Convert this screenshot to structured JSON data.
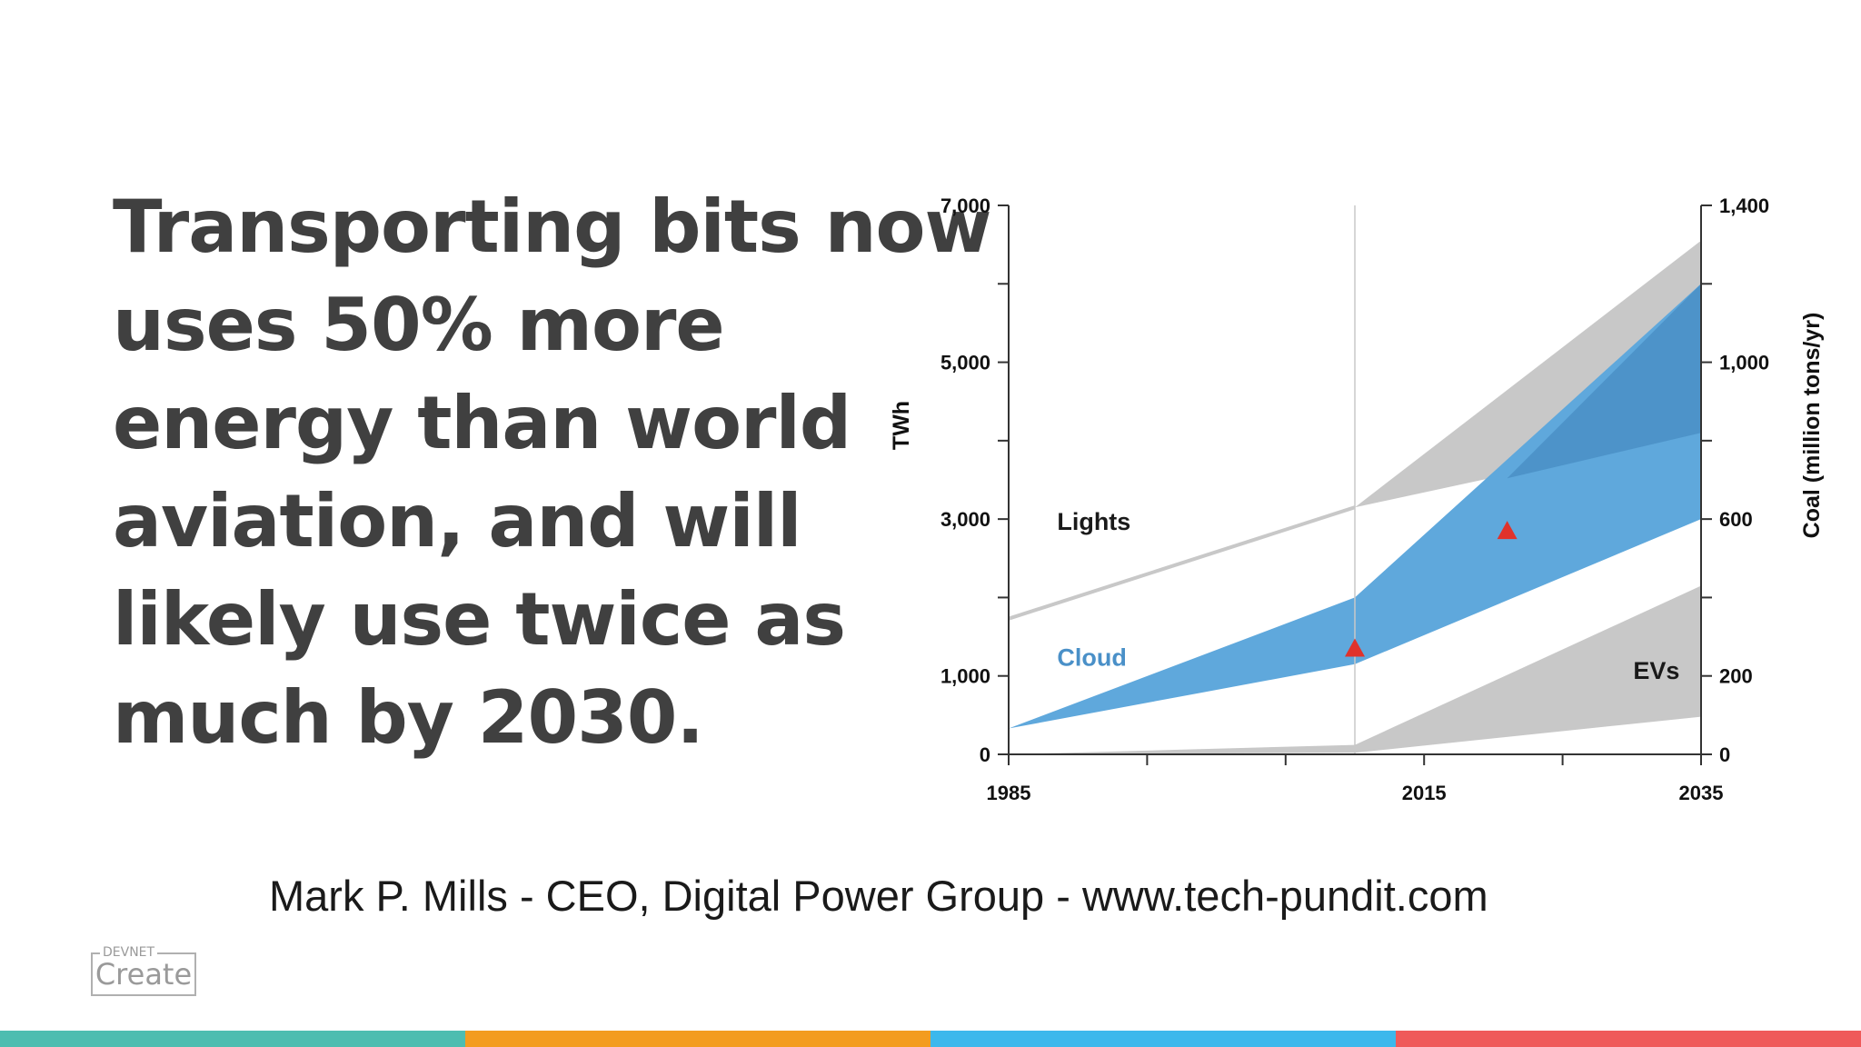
{
  "slide": {
    "headline_lines": [
      "Transporting bits now",
      "uses 50% more",
      "energy than world",
      "aviation, and will",
      "likely use twice as",
      "much by 2030."
    ],
    "attribution": "Mark P. Mills - CEO, Digital Power  Group - www.tech-pundit.com",
    "logo": {
      "small_text": "DEVNET",
      "main_text": "Create"
    },
    "color_bars": [
      "#4dbdb0",
      "#f39c1f",
      "#3cb8ec",
      "#ef5a5a"
    ]
  },
  "chart_data": {
    "type": "area",
    "title": "",
    "xlabel": "",
    "ylabel": "TWh",
    "y2label": "Coal (million tons/yr)",
    "xlim": [
      1985,
      2035
    ],
    "ylim": [
      0,
      7000
    ],
    "y2lim": [
      0,
      1400
    ],
    "x_ticks": [
      1985,
      1995,
      2005,
      2015,
      2025,
      2035
    ],
    "x_tick_labels": [
      {
        "x": 1985,
        "label": "1985"
      },
      {
        "x": 2015,
        "label": "2015"
      },
      {
        "x": 2035,
        "label": "2035"
      }
    ],
    "y_ticks": [
      0,
      1000,
      2000,
      3000,
      4000,
      5000,
      6000,
      7000
    ],
    "y_tick_labels": [
      {
        "y": 0,
        "label": "0"
      },
      {
        "y": 1000,
        "label": "1,000"
      },
      {
        "y": 3000,
        "label": "3,000"
      },
      {
        "y": 5000,
        "label": "5,000"
      },
      {
        "y": 7000,
        "label": "7,000"
      }
    ],
    "y2_ticks": [
      0,
      200,
      400,
      600,
      800,
      1000,
      1200,
      1400
    ],
    "y2_tick_labels": [
      {
        "y": 0,
        "label": "0"
      },
      {
        "y": 200,
        "label": "200"
      },
      {
        "y": 600,
        "label": "600"
      },
      {
        "y": 1000,
        "label": "1,000"
      },
      {
        "y": 1400,
        "label": "1,400"
      }
    ],
    "reference_line_x": 2010,
    "series": [
      {
        "name": "Lights",
        "color": "#bdbdbd",
        "line": [
          [
            1985,
            1730
          ],
          [
            2010,
            3150
          ]
        ],
        "band_upper": [
          [
            2010,
            3150
          ],
          [
            2035,
            6550
          ]
        ],
        "band_lower": [
          [
            2010,
            3150
          ],
          [
            2035,
            4100
          ]
        ]
      },
      {
        "name": "Cloud",
        "color": "#5fa8dc",
        "band_upper": [
          [
            1985,
            330
          ],
          [
            2010,
            2000
          ],
          [
            2035,
            6000
          ]
        ],
        "band_lower": [
          [
            1985,
            330
          ],
          [
            2010,
            1150
          ],
          [
            2035,
            3000
          ]
        ],
        "markers": [
          [
            2010,
            1350
          ],
          [
            2021,
            2850
          ]
        ]
      },
      {
        "name": "EVs",
        "color": "#bdbdbd",
        "band_upper": [
          [
            1985,
            0
          ],
          [
            2010,
            120
          ],
          [
            2035,
            2150
          ]
        ],
        "band_lower": [
          [
            1985,
            0
          ],
          [
            2010,
            20
          ],
          [
            2035,
            480
          ]
        ]
      }
    ],
    "legend": "inline",
    "grid": false
  }
}
